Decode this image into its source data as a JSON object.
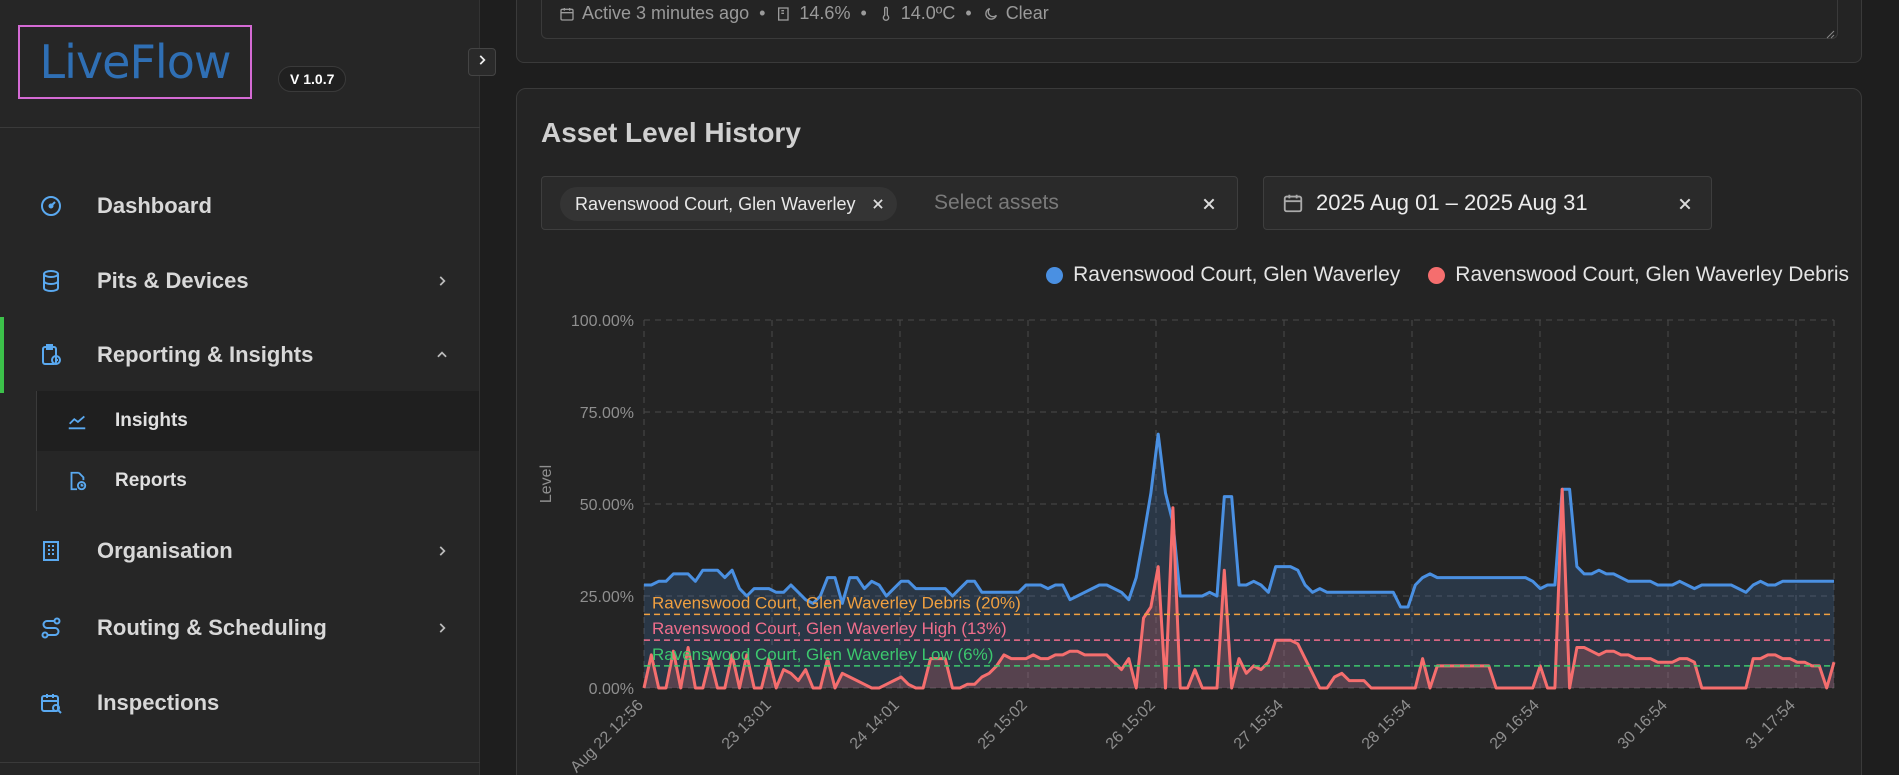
{
  "app": {
    "logo": "LiveFlow",
    "version": "V 1.0.7"
  },
  "sidebar": {
    "items": [
      {
        "label": "Dashboard",
        "icon": "gauge-icon"
      },
      {
        "label": "Pits & Devices",
        "icon": "database-icon"
      },
      {
        "label": "Reporting & Insights",
        "icon": "clipboard-chart-icon",
        "expanded": true,
        "children": [
          {
            "label": "Insights",
            "icon": "line-chart-icon",
            "selected": true
          },
          {
            "label": "Reports",
            "icon": "file-clock-icon"
          }
        ]
      },
      {
        "label": "Organisation",
        "icon": "building-icon"
      },
      {
        "label": "Routing & Scheduling",
        "icon": "route-icon"
      },
      {
        "label": "Inspections",
        "icon": "calendar-search-icon"
      }
    ]
  },
  "status": {
    "active": "Active 3 minutes ago",
    "battery": "14.6%",
    "temperature": "14.0ºC",
    "weather": "Clear"
  },
  "chart_card": {
    "title": "Asset Level History",
    "asset_chip": "Ravenswood Court, Glen Waverley",
    "asset_placeholder": "Select assets",
    "date_range": "2025 Aug 01 – 2025 Aug 31"
  },
  "colors": {
    "level_series": "#4a90e2",
    "debris_series": "#f56e6e",
    "debris_threshold": "#f0a040",
    "high_threshold": "#f06e8c",
    "low_threshold": "#3cc86e",
    "accent": "#3cc14a"
  },
  "chart_data": {
    "type": "area",
    "ylabel": "Level",
    "ylim": [
      0,
      100
    ],
    "y_ticks": [
      "100.00%",
      "75.00%",
      "50.00%",
      "25.00%",
      "0.00%"
    ],
    "x_ticks": [
      "Aug 22 12:56",
      "23 13:01",
      "24 14:01",
      "25 15:02",
      "26 15:02",
      "27 15:54",
      "28 15:54",
      "29 16:54",
      "30 16:54",
      "31 17:54"
    ],
    "thresholds": [
      {
        "label": "Ravenswood Court, Glen Waverley Debris (20%)",
        "value": 20
      },
      {
        "label": "Ravenswood Court, Glen Waverley High (13%)",
        "value": 13
      },
      {
        "label": "Ravenswood Court, Glen Waverley Low (6%)",
        "value": 6
      }
    ],
    "series": [
      {
        "name": "Ravenswood Court, Glen Waverley",
        "values": [
          28,
          28,
          29,
          29,
          31,
          31,
          31,
          29,
          32,
          32,
          32,
          30,
          32,
          27,
          25,
          27,
          27,
          27,
          26,
          26,
          28,
          26,
          24,
          23,
          25,
          30,
          30,
          23,
          30,
          30,
          27,
          29,
          28,
          25,
          27,
          29,
          29,
          27,
          27,
          27,
          27,
          27,
          25,
          27,
          29,
          29,
          26,
          26,
          26,
          26,
          26,
          26,
          28,
          28,
          28,
          27,
          28,
          28,
          24,
          25,
          26,
          27,
          28,
          28,
          27,
          26,
          24,
          30,
          41,
          53,
          69,
          53,
          45,
          25,
          25,
          25,
          25,
          26,
          25,
          52,
          52,
          28,
          28,
          29,
          28,
          26,
          33,
          33,
          33,
          32,
          28,
          26,
          27,
          26,
          26,
          26,
          26,
          26,
          26,
          26,
          26,
          26,
          26,
          22,
          22,
          28,
          30,
          31,
          30,
          30,
          30,
          30,
          30,
          30,
          30,
          30,
          30,
          30,
          30,
          30,
          30,
          29,
          27,
          28,
          28,
          54,
          54,
          33,
          31,
          31,
          32,
          31,
          31,
          30,
          29,
          29,
          29,
          29,
          28,
          28,
          28,
          29,
          28,
          27,
          28,
          28,
          28,
          28,
          28,
          27,
          26,
          28,
          29,
          28,
          28,
          29,
          29,
          29,
          29,
          29,
          29,
          29,
          29
        ]
      },
      {
        "name": "Ravenswood Court, Glen Waverley Debris",
        "values": [
          0,
          9,
          0,
          0,
          10,
          0,
          11,
          0,
          0,
          8,
          0,
          0,
          9,
          0,
          9,
          0,
          0,
          8,
          0,
          5,
          4,
          2,
          5,
          0,
          0,
          8,
          0,
          4,
          3,
          2,
          1,
          0,
          0,
          1,
          2,
          3,
          1,
          0,
          0,
          8,
          8,
          8,
          0,
          0,
          1,
          1,
          3,
          4,
          6,
          9,
          8,
          8,
          8,
          9,
          8,
          8,
          9,
          9,
          10,
          10,
          9,
          9,
          9,
          9,
          7,
          5,
          8,
          0,
          19,
          22,
          33,
          0,
          49,
          0,
          0,
          5,
          0,
          0,
          0,
          32,
          0,
          8,
          4,
          6,
          5,
          7,
          13,
          13,
          13,
          12,
          8,
          4,
          0,
          0,
          3,
          4,
          2,
          2,
          2,
          0,
          0,
          0,
          0,
          0,
          0,
          0,
          8,
          0,
          6,
          6,
          6,
          6,
          6,
          6,
          6,
          6,
          0,
          0,
          0,
          0,
          0,
          0,
          6,
          0,
          0,
          54,
          0,
          11,
          11,
          10,
          9,
          10,
          10,
          9,
          9,
          8,
          8,
          8,
          7,
          7,
          7,
          8,
          8,
          7,
          0,
          0,
          0,
          0,
          0,
          0,
          0,
          8,
          8,
          9,
          9,
          8,
          8,
          7,
          7,
          6,
          6,
          0,
          7
        ]
      }
    ]
  }
}
